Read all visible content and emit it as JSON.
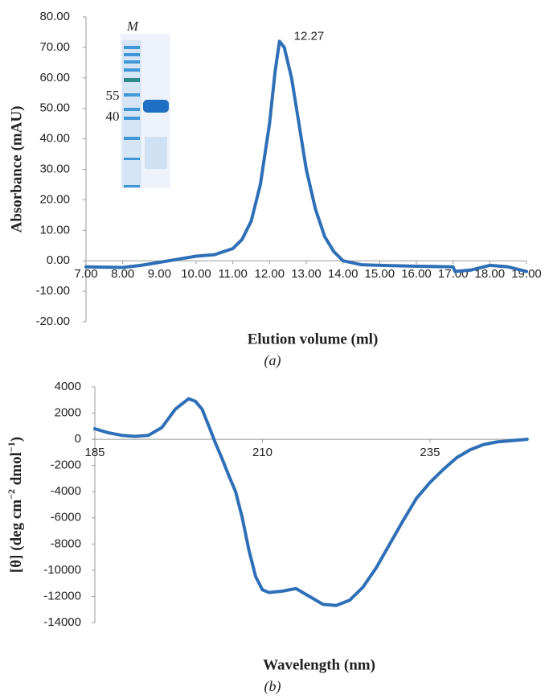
{
  "chart_data": [
    {
      "type": "line",
      "xlabel": "Elution volume (ml)",
      "ylabel": "Absorbance (mAU)",
      "caption": "(a)",
      "color": "#2f6fb7",
      "x": [
        7,
        8,
        8.5,
        9,
        9.5,
        10,
        10.5,
        11,
        11.25,
        11.5,
        11.75,
        12,
        12.15,
        12.27,
        12.4,
        12.6,
        12.8,
        13,
        13.25,
        13.5,
        13.75,
        14,
        14.5,
        15,
        16,
        17,
        17.05,
        17.5,
        18,
        18.5,
        19
      ],
      "y": [
        -2,
        -2.2,
        -1.5,
        -0.5,
        0.5,
        1.5,
        2,
        4,
        7,
        13,
        25,
        45,
        62,
        72,
        70,
        60,
        45,
        30,
        17,
        8,
        3,
        0,
        -1.3,
        -1.5,
        -1.8,
        -2,
        -3.5,
        -3,
        -1.5,
        -2,
        -3.5
      ],
      "annotation": "12.27",
      "inset": {
        "lane_label": "M",
        "markers": [
          "55",
          "40"
        ]
      },
      "xlim": [
        7,
        19
      ],
      "xticks": [
        {
          "value": 7,
          "label": "7.00"
        },
        {
          "value": 8,
          "label": "8.00"
        },
        {
          "value": 9,
          "label": "9.00"
        },
        {
          "value": 10,
          "label": "10.00"
        },
        {
          "value": 11,
          "label": "11.00"
        },
        {
          "value": 12,
          "label": "12.00"
        },
        {
          "value": 13,
          "label": "13.00"
        },
        {
          "value": 14,
          "label": "14.00"
        },
        {
          "value": 15,
          "label": "15.00"
        },
        {
          "value": 16,
          "label": "16.00"
        },
        {
          "value": 17,
          "label": "17.00"
        },
        {
          "value": 18,
          "label": "18.00"
        },
        {
          "value": 19,
          "label": "19.00"
        }
      ],
      "ylim": [
        -20,
        80
      ],
      "yticks": [
        {
          "value": -20,
          "label": "-20.00"
        },
        {
          "value": -10,
          "label": "-10.00"
        },
        {
          "value": 0,
          "label": "0.00"
        },
        {
          "value": 10,
          "label": "10.00"
        },
        {
          "value": 20,
          "label": "20.00"
        },
        {
          "value": 30,
          "label": "30.00"
        },
        {
          "value": 40,
          "label": "40.00"
        },
        {
          "value": 50,
          "label": "50.00"
        },
        {
          "value": 60,
          "label": "60.00"
        },
        {
          "value": 70,
          "label": "70.00"
        },
        {
          "value": 80,
          "label": "80.00"
        }
      ]
    },
    {
      "type": "line",
      "xlabel": "Wavelength (nm)",
      "ylabel": [
        "[θ] (deg cm",
        "−2",
        " dmol",
        "−1",
        ")"
      ],
      "caption": "(b)",
      "color": "#2f6fb7",
      "x": [
        185,
        187,
        189,
        191,
        193,
        195,
        197,
        199,
        200,
        201,
        202,
        203,
        204,
        205,
        206,
        207,
        208,
        209,
        210,
        211,
        213,
        215,
        217,
        219,
        221,
        223,
        225,
        227,
        229,
        231,
        233,
        235,
        237,
        239,
        241,
        243,
        245,
        249.5
      ],
      "y": [
        800,
        500,
        300,
        220,
        300,
        900,
        2300,
        3100,
        2900,
        2300,
        1000,
        -300,
        -1500,
        -2800,
        -4000,
        -6000,
        -8500,
        -10500,
        -11500,
        -11700,
        -11600,
        -11400,
        -12000,
        -12600,
        -12700,
        -12300,
        -11300,
        -9800,
        -8000,
        -6200,
        -4500,
        -3300,
        -2300,
        -1400,
        -800,
        -400,
        -200,
        0
      ],
      "xlim": [
        185,
        250
      ],
      "xticks": [
        185,
        210,
        235
      ],
      "ylim": [
        -14000,
        4000
      ],
      "yticks": [
        -14000,
        -12000,
        -10000,
        -8000,
        -6000,
        -4000,
        -2000,
        0,
        2000,
        4000
      ]
    }
  ]
}
